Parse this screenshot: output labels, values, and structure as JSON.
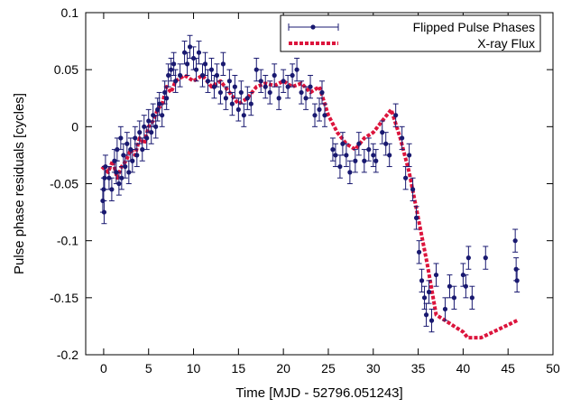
{
  "chart_data": {
    "type": "scatter",
    "xlabel": "Time  [MJD - 52796.051243]",
    "ylabel": "Pulse phase residuals [cycles]",
    "xlim": [
      -2,
      50
    ],
    "ylim": [
      -0.2,
      0.1
    ],
    "x_ticks": [
      0,
      5,
      10,
      15,
      20,
      25,
      30,
      35,
      40,
      45,
      50
    ],
    "x_tick_labels": [
      "0",
      "5",
      "10",
      "15",
      "20",
      "25",
      "30",
      "35",
      "40",
      "45",
      "50"
    ],
    "y_ticks": [
      -0.2,
      -0.15,
      -0.1,
      -0.05,
      0,
      0.05,
      0.1
    ],
    "y_tick_labels": [
      "-0.2",
      "-0.15",
      "-0.1",
      "-0.05",
      "0",
      "0.05",
      "0.1"
    ],
    "legend_position": "top-right",
    "grid": false,
    "series": [
      {
        "name": "Flipped Pulse Phases",
        "style": "points-with-errorbars",
        "color": "#191970",
        "points": [
          [
            -0.1,
            -0.065,
            0.01
          ],
          [
            0.0,
            -0.055,
            0.01
          ],
          [
            0.05,
            -0.075,
            0.01
          ],
          [
            0.1,
            -0.045,
            0.01
          ],
          [
            0.2,
            -0.035,
            0.01
          ],
          [
            0.6,
            -0.045,
            0.01
          ],
          [
            0.9,
            -0.055,
            0.01
          ],
          [
            1.2,
            -0.03,
            0.01
          ],
          [
            1.4,
            -0.04,
            0.01
          ],
          [
            1.5,
            -0.02,
            0.01
          ],
          [
            1.7,
            -0.05,
            0.01
          ],
          [
            1.9,
            -0.01,
            0.01
          ],
          [
            2.0,
            -0.045,
            0.01
          ],
          [
            2.2,
            -0.025,
            0.01
          ],
          [
            2.4,
            -0.035,
            0.01
          ],
          [
            2.6,
            -0.015,
            0.01
          ],
          [
            2.8,
            -0.04,
            0.01
          ],
          [
            3.0,
            -0.02,
            0.01
          ],
          [
            3.2,
            -0.03,
            0.01
          ],
          [
            3.5,
            -0.01,
            0.01
          ],
          [
            3.7,
            -0.025,
            0.01
          ],
          [
            4.0,
            -0.005,
            0.01
          ],
          [
            4.3,
            -0.02,
            0.01
          ],
          [
            4.5,
            0.0,
            0.01
          ],
          [
            4.8,
            -0.01,
            0.01
          ],
          [
            5.0,
            0.005,
            0.01
          ],
          [
            5.3,
            -0.005,
            0.01
          ],
          [
            5.5,
            0.01,
            0.01
          ],
          [
            5.8,
            0.0,
            0.01
          ],
          [
            6.0,
            0.015,
            0.01
          ],
          [
            6.2,
            0.02,
            0.01
          ],
          [
            6.5,
            0.01,
            0.01
          ],
          [
            6.8,
            0.03,
            0.01
          ],
          [
            7.0,
            0.025,
            0.01
          ],
          [
            7.2,
            0.045,
            0.01
          ],
          [
            7.5,
            0.05,
            0.01
          ],
          [
            7.8,
            0.055,
            0.01
          ],
          [
            8.0,
            0.04,
            0.01
          ],
          [
            8.5,
            0.045,
            0.01
          ],
          [
            9.0,
            0.065,
            0.01
          ],
          [
            9.3,
            0.055,
            0.01
          ],
          [
            9.6,
            0.07,
            0.01
          ],
          [
            10.0,
            0.06,
            0.01
          ],
          [
            10.3,
            0.05,
            0.01
          ],
          [
            10.6,
            0.065,
            0.01
          ],
          [
            11.0,
            0.045,
            0.01
          ],
          [
            11.3,
            0.055,
            0.01
          ],
          [
            11.6,
            0.04,
            0.01
          ],
          [
            12.0,
            0.05,
            0.01
          ],
          [
            12.3,
            0.035,
            0.01
          ],
          [
            12.6,
            0.045,
            0.01
          ],
          [
            13.0,
            0.03,
            0.01
          ],
          [
            13.3,
            0.055,
            0.01
          ],
          [
            13.6,
            0.025,
            0.01
          ],
          [
            14.0,
            0.04,
            0.01
          ],
          [
            14.3,
            0.02,
            0.01
          ],
          [
            14.6,
            0.035,
            0.01
          ],
          [
            15.0,
            0.015,
            0.01
          ],
          [
            15.3,
            0.03,
            0.01
          ],
          [
            15.6,
            0.01,
            0.01
          ],
          [
            16.0,
            0.025,
            0.01
          ],
          [
            16.4,
            0.02,
            0.01
          ],
          [
            17.0,
            0.05,
            0.01
          ],
          [
            17.5,
            0.04,
            0.01
          ],
          [
            18.0,
            0.035,
            0.01
          ],
          [
            18.5,
            0.03,
            0.01
          ],
          [
            19.0,
            0.045,
            0.01
          ],
          [
            19.5,
            0.025,
            0.01
          ],
          [
            20.0,
            0.04,
            0.01
          ],
          [
            20.5,
            0.035,
            0.01
          ],
          [
            21.0,
            0.045,
            0.01
          ],
          [
            21.5,
            0.05,
            0.01
          ],
          [
            22.0,
            0.03,
            0.01
          ],
          [
            22.5,
            0.025,
            0.01
          ],
          [
            23.0,
            0.035,
            0.01
          ],
          [
            23.5,
            0.01,
            0.01
          ],
          [
            24.0,
            0.015,
            0.01
          ],
          [
            24.3,
            0.03,
            0.01
          ],
          [
            24.6,
            0.01,
            0.01
          ],
          [
            25.5,
            -0.02,
            0.01
          ],
          [
            25.8,
            -0.025,
            0.01
          ],
          [
            26.3,
            -0.035,
            0.01
          ],
          [
            26.6,
            -0.015,
            0.01
          ],
          [
            27.0,
            -0.025,
            0.01
          ],
          [
            27.4,
            -0.04,
            0.01
          ],
          [
            28.0,
            -0.03,
            0.01
          ],
          [
            28.4,
            -0.015,
            0.01
          ],
          [
            29.0,
            -0.03,
            0.01
          ],
          [
            29.5,
            -0.02,
            0.01
          ],
          [
            30.0,
            -0.025,
            0.01
          ],
          [
            30.3,
            -0.03,
            0.01
          ],
          [
            31.0,
            -0.005,
            0.01
          ],
          [
            31.4,
            -0.015,
            0.01
          ],
          [
            31.8,
            -0.025,
            0.01
          ],
          [
            32.5,
            0.01,
            0.01
          ],
          [
            33.2,
            -0.01,
            0.01
          ],
          [
            33.6,
            -0.045,
            0.01
          ],
          [
            34.0,
            -0.025,
            0.01
          ],
          [
            34.4,
            -0.055,
            0.01
          ],
          [
            34.8,
            -0.08,
            0.01
          ],
          [
            35.1,
            -0.11,
            0.01
          ],
          [
            35.4,
            -0.135,
            0.01
          ],
          [
            35.7,
            -0.15,
            0.01
          ],
          [
            35.9,
            -0.165,
            0.01
          ],
          [
            36.2,
            -0.145,
            0.01
          ],
          [
            36.5,
            -0.17,
            0.01
          ],
          [
            37.0,
            -0.13,
            0.01
          ],
          [
            38.0,
            -0.16,
            0.01
          ],
          [
            38.5,
            -0.14,
            0.01
          ],
          [
            39.0,
            -0.15,
            0.01
          ],
          [
            40.0,
            -0.13,
            0.01
          ],
          [
            40.3,
            -0.14,
            0.01
          ],
          [
            40.6,
            -0.115,
            0.01
          ],
          [
            41.0,
            -0.15,
            0.01
          ],
          [
            42.5,
            -0.115,
            0.01
          ],
          [
            45.8,
            -0.1,
            0.01
          ],
          [
            45.9,
            -0.125,
            0.01
          ],
          [
            46.0,
            -0.135,
            0.01
          ]
        ]
      },
      {
        "name": "X-ray Flux",
        "style": "dashed-line",
        "color": "#dc143c",
        "x": [
          -0.2,
          0.5,
          1.0,
          1.5,
          2.0,
          2.5,
          3.0,
          3.5,
          4.0,
          4.5,
          5.0,
          5.5,
          6.0,
          6.5,
          7.0,
          7.5,
          8.0,
          9.0,
          10.0,
          11.0,
          12.0,
          13.0,
          14.0,
          15.0,
          16.0,
          17.0,
          18.0,
          19.0,
          20.0,
          21.0,
          22.0,
          23.0,
          24.0,
          25.0,
          26.0,
          27.0,
          28.0,
          29.0,
          30.0,
          31.0,
          32.0,
          33.0,
          34.0,
          35.0,
          36.0,
          37.0,
          38.0,
          39.0,
          40.0,
          40.5,
          42.0,
          46.0
        ],
        "values": [
          -0.035,
          -0.04,
          -0.03,
          -0.045,
          -0.035,
          -0.03,
          -0.02,
          -0.025,
          -0.01,
          -0.015,
          0.0,
          0.005,
          0.015,
          0.02,
          0.035,
          0.03,
          0.04,
          0.045,
          0.04,
          0.045,
          0.035,
          0.04,
          0.03,
          0.02,
          0.025,
          0.035,
          0.038,
          0.036,
          0.04,
          0.035,
          0.038,
          0.03,
          0.035,
          0.01,
          -0.005,
          -0.015,
          -0.02,
          -0.01,
          -0.005,
          0.005,
          0.015,
          -0.01,
          -0.04,
          -0.08,
          -0.12,
          -0.165,
          -0.17,
          -0.175,
          -0.18,
          -0.185,
          -0.185,
          -0.17
        ]
      }
    ]
  }
}
